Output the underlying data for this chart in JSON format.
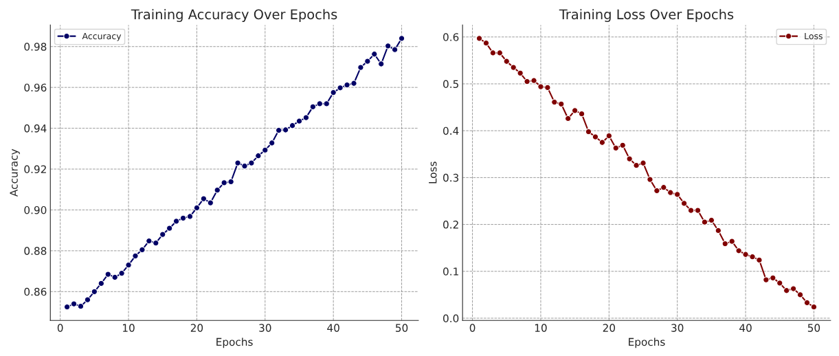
{
  "chart_data": [
    {
      "type": "line",
      "title": "Training Accuracy Over Epochs",
      "xlabel": "Epochs",
      "ylabel": "Accuracy",
      "x": [
        1,
        2,
        3,
        4,
        5,
        6,
        7,
        8,
        9,
        10,
        11,
        12,
        13,
        14,
        15,
        16,
        17,
        18,
        19,
        20,
        21,
        22,
        23,
        24,
        25,
        26,
        27,
        28,
        29,
        30,
        31,
        32,
        33,
        34,
        35,
        36,
        37,
        38,
        39,
        40,
        41,
        42,
        43,
        44,
        45,
        46,
        47,
        48,
        49,
        50
      ],
      "series": [
        {
          "name": "Accuracy",
          "color": "#000066",
          "values": [
            0.8525,
            0.854,
            0.8528,
            0.856,
            0.86,
            0.864,
            0.8685,
            0.867,
            0.869,
            0.873,
            0.8775,
            0.8805,
            0.8848,
            0.8838,
            0.888,
            0.891,
            0.8945,
            0.896,
            0.8968,
            0.901,
            0.9055,
            0.9035,
            0.9097,
            0.9133,
            0.9138,
            0.923,
            0.9215,
            0.923,
            0.9265,
            0.9293,
            0.9328,
            0.939,
            0.9392,
            0.9413,
            0.9435,
            0.9452,
            0.9505,
            0.952,
            0.952,
            0.9575,
            0.9598,
            0.9612,
            0.962,
            0.9698,
            0.9728,
            0.9763,
            0.9715,
            0.9803,
            0.9785,
            0.984
          ]
        }
      ],
      "xlim": [
        -1.45,
        52.45
      ],
      "xticks": [
        0,
        10,
        20,
        30,
        40,
        50
      ],
      "ylim": [
        0.8459,
        0.9906
      ],
      "yticks": [
        {
          "value": 0.86,
          "label": "0.86"
        },
        {
          "value": 0.88,
          "label": "0.88"
        },
        {
          "value": 0.9,
          "label": "0.90"
        },
        {
          "value": 0.92,
          "label": "0.92"
        },
        {
          "value": 0.94,
          "label": "0.94"
        },
        {
          "value": 0.96,
          "label": "0.96"
        },
        {
          "value": 0.98,
          "label": "0.98"
        }
      ],
      "grid": true,
      "legend": "top left",
      "marker": "circle",
      "line_style": "solid"
    },
    {
      "type": "line",
      "title": "Training Loss Over Epochs",
      "xlabel": "Epochs",
      "ylabel": "Loss",
      "x": [
        1,
        2,
        3,
        4,
        5,
        6,
        7,
        8,
        9,
        10,
        11,
        12,
        13,
        14,
        15,
        16,
        17,
        18,
        19,
        20,
        21,
        22,
        23,
        24,
        25,
        26,
        27,
        28,
        29,
        30,
        31,
        32,
        33,
        34,
        35,
        36,
        37,
        38,
        39,
        40,
        41,
        42,
        43,
        44,
        45,
        46,
        47,
        48,
        49,
        50
      ],
      "series": [
        {
          "name": "Loss",
          "color": "#800000",
          "values": [
            0.597,
            0.587,
            0.566,
            0.566,
            0.548,
            0.535,
            0.523,
            0.505,
            0.507,
            0.494,
            0.492,
            0.461,
            0.457,
            0.426,
            0.443,
            0.436,
            0.398,
            0.387,
            0.375,
            0.389,
            0.363,
            0.369,
            0.34,
            0.326,
            0.331,
            0.296,
            0.272,
            0.279,
            0.268,
            0.264,
            0.245,
            0.23,
            0.23,
            0.205,
            0.209,
            0.187,
            0.159,
            0.164,
            0.144,
            0.136,
            0.131,
            0.124,
            0.082,
            0.086,
            0.075,
            0.059,
            0.063,
            0.05,
            0.033,
            0.024
          ]
        }
      ],
      "xlim": [
        -1.45,
        52.45
      ],
      "xticks": [
        0,
        10,
        20,
        30,
        40,
        50
      ],
      "ylim": [
        -0.0047,
        0.6257
      ],
      "yticks": [
        {
          "value": 0.0,
          "label": "0.0"
        },
        {
          "value": 0.1,
          "label": "0.1"
        },
        {
          "value": 0.2,
          "label": "0.2"
        },
        {
          "value": 0.3,
          "label": "0.3"
        },
        {
          "value": 0.4,
          "label": "0.4"
        },
        {
          "value": 0.5,
          "label": "0.5"
        },
        {
          "value": 0.6,
          "label": "0.6"
        }
      ],
      "grid": true,
      "legend": "top right",
      "marker": "circle",
      "line_style": "solid"
    }
  ]
}
